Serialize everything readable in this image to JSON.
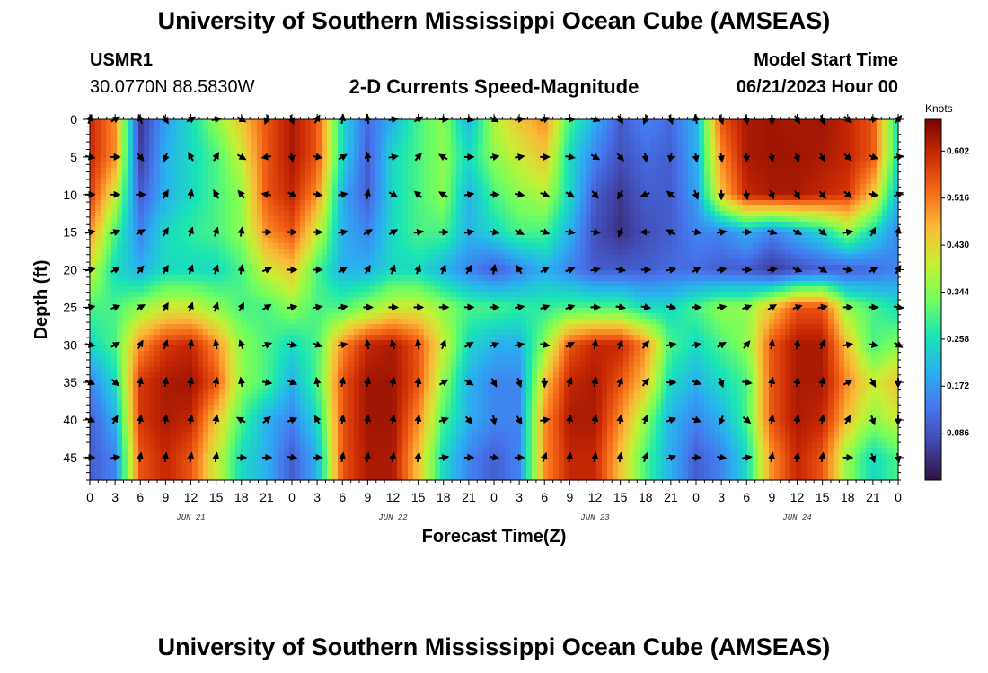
{
  "header": {
    "title": "University of Southern Mississippi Ocean Cube (AMSEAS)",
    "station_name": "USMR1",
    "station_coords": "30.0770N  88.5830W",
    "subtitle": "2-D Currents Speed-Magnitude",
    "model_start_label": "Model Start Time",
    "model_start_value": "06/21/2023 Hour 00"
  },
  "footer": {
    "title": "University of Southern Mississippi Ocean Cube (AMSEAS)"
  },
  "chart_data": {
    "type": "heatmap",
    "title": "2-D Currents Speed-Magnitude",
    "xlabel": "Forecast Time(Z)",
    "ylabel": "Depth (ft)",
    "x_ticks": [
      "0",
      "3",
      "6",
      "9",
      "12",
      "15",
      "18",
      "21",
      "0",
      "3",
      "6",
      "9",
      "12",
      "15",
      "18",
      "21",
      "0",
      "3",
      "6",
      "9",
      "12",
      "15",
      "18",
      "21",
      "0",
      "3",
      "6",
      "9",
      "12",
      "15",
      "18",
      "21",
      "0"
    ],
    "x_range_hours": [
      0,
      96
    ],
    "day_labels": [
      {
        "label": "JUN 21",
        "hour": 12
      },
      {
        "label": "JUN 22",
        "hour": 36
      },
      {
        "label": "JUN 23",
        "hour": 60
      },
      {
        "label": "JUN 24",
        "hour": 84
      }
    ],
    "y_ticks": [
      0,
      5,
      10,
      15,
      20,
      25,
      30,
      35,
      40,
      45
    ],
    "y_range_ft": [
      0,
      48
    ],
    "colorbar": {
      "unit": "Knots",
      "ticks": [
        0.086,
        0.172,
        0.258,
        0.344,
        0.43,
        0.516,
        0.602
      ],
      "range": [
        0.0,
        0.66
      ]
    },
    "hours": [
      0,
      3,
      6,
      9,
      12,
      15,
      18,
      21,
      24,
      27,
      30,
      33,
      36,
      39,
      42,
      45,
      48,
      51,
      54,
      57,
      60,
      63,
      66,
      69,
      72,
      75,
      78,
      81,
      84,
      87,
      90,
      93,
      96
    ],
    "depths_ft": [
      0,
      5,
      10,
      15,
      20,
      25,
      30,
      35,
      40,
      45
    ],
    "speed_knots": [
      [
        0.6,
        0.5,
        0.05,
        0.18,
        0.25,
        0.35,
        0.45,
        0.55,
        0.62,
        0.55,
        0.25,
        0.12,
        0.2,
        0.3,
        0.35,
        0.2,
        0.38,
        0.45,
        0.5,
        0.3,
        0.2,
        0.1,
        0.15,
        0.12,
        0.2,
        0.55,
        0.62,
        0.63,
        0.62,
        0.63,
        0.6,
        0.55,
        0.25
      ],
      [
        0.6,
        0.5,
        0.06,
        0.2,
        0.25,
        0.3,
        0.4,
        0.55,
        0.62,
        0.55,
        0.25,
        0.1,
        0.25,
        0.3,
        0.35,
        0.25,
        0.35,
        0.4,
        0.45,
        0.25,
        0.15,
        0.08,
        0.12,
        0.1,
        0.2,
        0.5,
        0.62,
        0.63,
        0.63,
        0.62,
        0.6,
        0.55,
        0.25
      ],
      [
        0.58,
        0.4,
        0.1,
        0.2,
        0.25,
        0.3,
        0.35,
        0.55,
        0.6,
        0.5,
        0.2,
        0.1,
        0.25,
        0.3,
        0.35,
        0.2,
        0.3,
        0.35,
        0.38,
        0.25,
        0.1,
        0.05,
        0.1,
        0.1,
        0.18,
        0.45,
        0.6,
        0.62,
        0.62,
        0.6,
        0.58,
        0.45,
        0.2
      ],
      [
        0.5,
        0.3,
        0.15,
        0.25,
        0.28,
        0.3,
        0.35,
        0.5,
        0.55,
        0.4,
        0.2,
        0.15,
        0.25,
        0.3,
        0.3,
        0.2,
        0.25,
        0.3,
        0.3,
        0.2,
        0.08,
        0.04,
        0.08,
        0.1,
        0.15,
        0.15,
        0.2,
        0.15,
        0.2,
        0.25,
        0.35,
        0.25,
        0.15
      ],
      [
        0.4,
        0.25,
        0.2,
        0.25,
        0.25,
        0.25,
        0.3,
        0.4,
        0.45,
        0.3,
        0.2,
        0.2,
        0.25,
        0.25,
        0.2,
        0.15,
        0.1,
        0.15,
        0.2,
        0.15,
        0.1,
        0.1,
        0.1,
        0.12,
        0.12,
        0.1,
        0.1,
        0.05,
        0.08,
        0.1,
        0.1,
        0.12,
        0.15
      ],
      [
        0.3,
        0.3,
        0.35,
        0.4,
        0.4,
        0.35,
        0.3,
        0.3,
        0.35,
        0.3,
        0.3,
        0.35,
        0.4,
        0.4,
        0.35,
        0.3,
        0.3,
        0.28,
        0.28,
        0.3,
        0.3,
        0.3,
        0.25,
        0.25,
        0.3,
        0.35,
        0.35,
        0.45,
        0.55,
        0.55,
        0.35,
        0.3,
        0.25
      ],
      [
        0.25,
        0.3,
        0.5,
        0.58,
        0.6,
        0.5,
        0.35,
        0.3,
        0.25,
        0.3,
        0.5,
        0.6,
        0.62,
        0.55,
        0.4,
        0.25,
        0.2,
        0.2,
        0.35,
        0.55,
        0.6,
        0.6,
        0.5,
        0.3,
        0.25,
        0.3,
        0.35,
        0.55,
        0.62,
        0.62,
        0.45,
        0.3,
        0.35
      ],
      [
        0.15,
        0.25,
        0.58,
        0.62,
        0.63,
        0.55,
        0.35,
        0.3,
        0.2,
        0.3,
        0.55,
        0.63,
        0.63,
        0.55,
        0.35,
        0.2,
        0.15,
        0.15,
        0.45,
        0.6,
        0.62,
        0.55,
        0.45,
        0.25,
        0.2,
        0.25,
        0.3,
        0.55,
        0.62,
        0.62,
        0.5,
        0.4,
        0.45
      ],
      [
        0.1,
        0.2,
        0.58,
        0.62,
        0.6,
        0.45,
        0.3,
        0.2,
        0.15,
        0.25,
        0.55,
        0.63,
        0.63,
        0.5,
        0.3,
        0.2,
        0.15,
        0.15,
        0.5,
        0.62,
        0.62,
        0.5,
        0.35,
        0.2,
        0.15,
        0.2,
        0.3,
        0.55,
        0.62,
        0.6,
        0.45,
        0.35,
        0.4
      ],
      [
        0.1,
        0.15,
        0.55,
        0.6,
        0.55,
        0.4,
        0.25,
        0.2,
        0.1,
        0.2,
        0.55,
        0.62,
        0.62,
        0.45,
        0.25,
        0.15,
        0.1,
        0.15,
        0.5,
        0.6,
        0.6,
        0.45,
        0.3,
        0.2,
        0.1,
        0.15,
        0.25,
        0.5,
        0.6,
        0.55,
        0.35,
        0.25,
        0.3
      ]
    ],
    "direction_deg": [
      [
        20,
        60,
        340,
        150,
        60,
        80,
        120,
        200,
        160,
        30,
        10,
        350,
        80,
        60,
        90,
        100,
        120,
        80,
        70,
        90,
        110,
        150,
        200,
        160,
        350,
        160,
        170,
        180,
        150,
        160,
        130,
        80,
        40
      ],
      [
        100,
        90,
        140,
        200,
        330,
        30,
        120,
        260,
        170,
        100,
        60,
        350,
        80,
        40,
        300,
        90,
        80,
        80,
        90,
        100,
        120,
        140,
        170,
        190,
        170,
        170,
        180,
        170,
        160,
        150,
        130,
        110,
        80
      ],
      [
        90,
        90,
        90,
        30,
        10,
        330,
        320,
        280,
        120,
        100,
        80,
        10,
        120,
        310,
        300,
        80,
        90,
        100,
        110,
        120,
        140,
        210,
        250,
        310,
        160,
        180,
        170,
        160,
        150,
        140,
        130,
        100,
        70
      ],
      [
        80,
        70,
        60,
        30,
        20,
        20,
        10,
        90,
        90,
        90,
        80,
        60,
        60,
        80,
        90,
        80,
        100,
        120,
        110,
        100,
        100,
        200,
        270,
        300,
        100,
        80,
        90,
        110,
        120,
        130,
        80,
        30,
        10
      ],
      [
        80,
        60,
        40,
        30,
        20,
        20,
        10,
        70,
        90,
        90,
        60,
        30,
        20,
        20,
        20,
        30,
        10,
        330,
        60,
        70,
        80,
        100,
        90,
        80,
        60,
        80,
        90,
        80,
        110,
        120,
        100,
        60,
        30
      ],
      [
        80,
        70,
        60,
        30,
        20,
        20,
        30,
        60,
        80,
        80,
        80,
        90,
        90,
        90,
        90,
        90,
        90,
        80,
        70,
        70,
        90,
        100,
        100,
        100,
        90,
        80,
        70,
        60,
        70,
        80,
        90,
        90,
        100
      ],
      [
        100,
        60,
        30,
        20,
        10,
        350,
        340,
        70,
        100,
        110,
        80,
        350,
        340,
        350,
        20,
        60,
        70,
        80,
        100,
        60,
        10,
        20,
        40,
        80,
        80,
        60,
        40,
        10,
        10,
        20,
        80,
        100,
        120
      ],
      [
        110,
        130,
        10,
        10,
        10,
        10,
        350,
        100,
        110,
        350,
        10,
        10,
        10,
        10,
        60,
        120,
        150,
        160,
        180,
        20,
        10,
        20,
        40,
        90,
        110,
        160,
        100,
        10,
        10,
        10,
        60,
        150,
        180
      ],
      [
        110,
        30,
        10,
        10,
        10,
        10,
        300,
        50,
        70,
        330,
        10,
        10,
        10,
        10,
        70,
        140,
        170,
        150,
        80,
        10,
        10,
        10,
        20,
        70,
        110,
        200,
        130,
        10,
        10,
        10,
        30,
        160,
        180
      ],
      [
        90,
        80,
        10,
        10,
        10,
        10,
        90,
        90,
        100,
        90,
        10,
        10,
        10,
        10,
        80,
        90,
        100,
        90,
        20,
        10,
        10,
        10,
        20,
        70,
        90,
        100,
        80,
        10,
        10,
        10,
        90,
        160,
        170
      ]
    ]
  }
}
